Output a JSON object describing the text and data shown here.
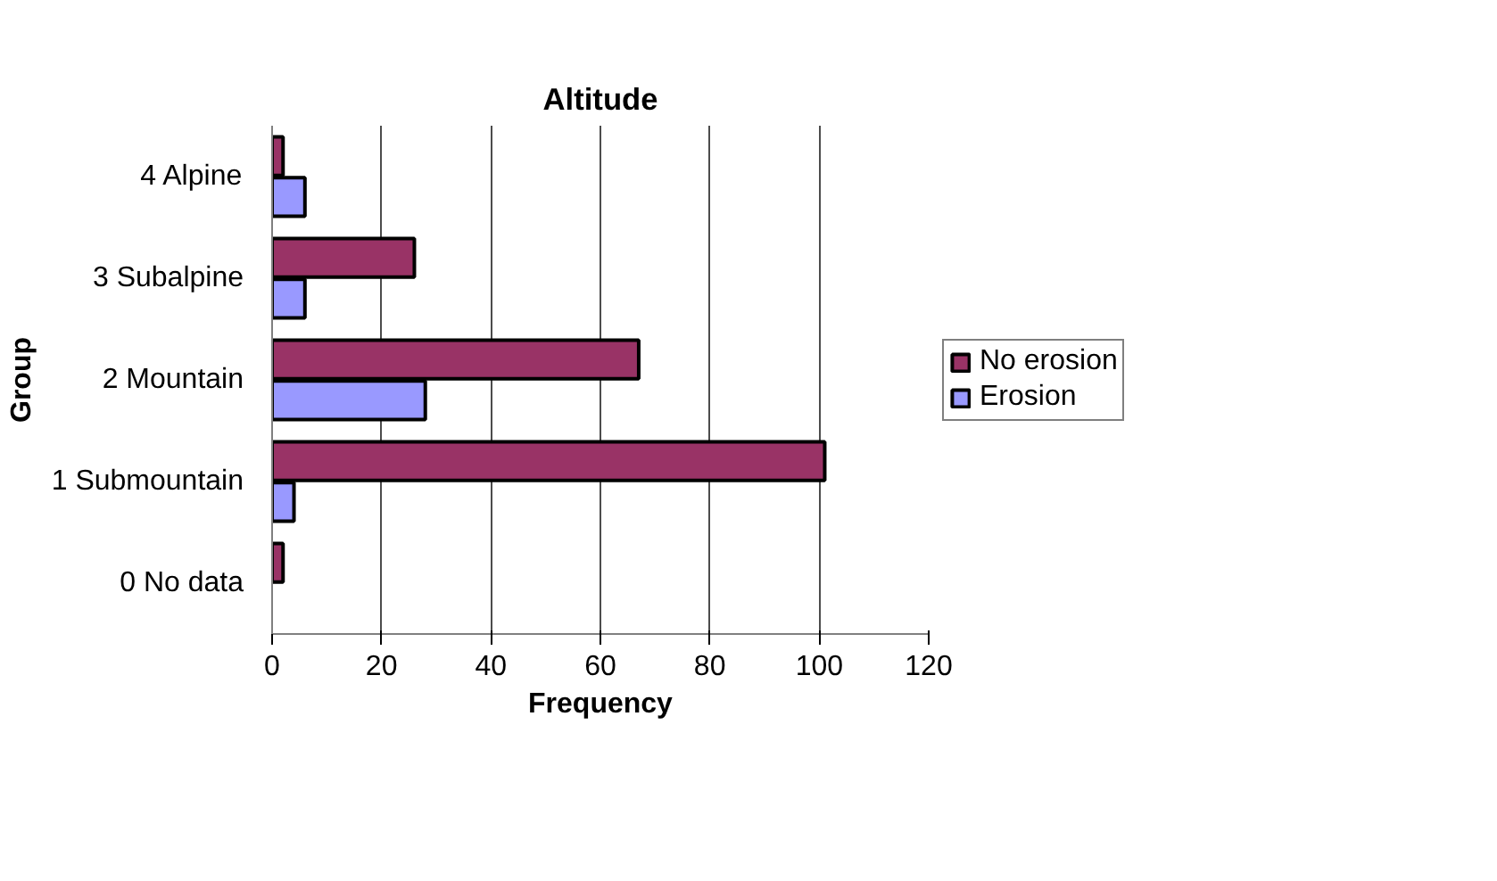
{
  "chart_data": {
    "type": "bar",
    "orientation": "horizontal",
    "title": "Altitude",
    "xlabel": "Frequency",
    "ylabel": "Group",
    "categories": [
      "4 Alpine",
      "3 Subalpine",
      "2 Mountain",
      "1 Submountain",
      "0 No data"
    ],
    "series": [
      {
        "name": "No erosion",
        "color": "#993366",
        "values": [
          2,
          26,
          67,
          101,
          2
        ]
      },
      {
        "name": "Erosion",
        "color": "#9999ff",
        "values": [
          6,
          6,
          28,
          4,
          null
        ]
      }
    ],
    "xlim": [
      0,
      120
    ],
    "xticks": [
      0,
      20,
      40,
      60,
      80,
      100,
      120
    ],
    "grid": "x",
    "legend": "right"
  }
}
